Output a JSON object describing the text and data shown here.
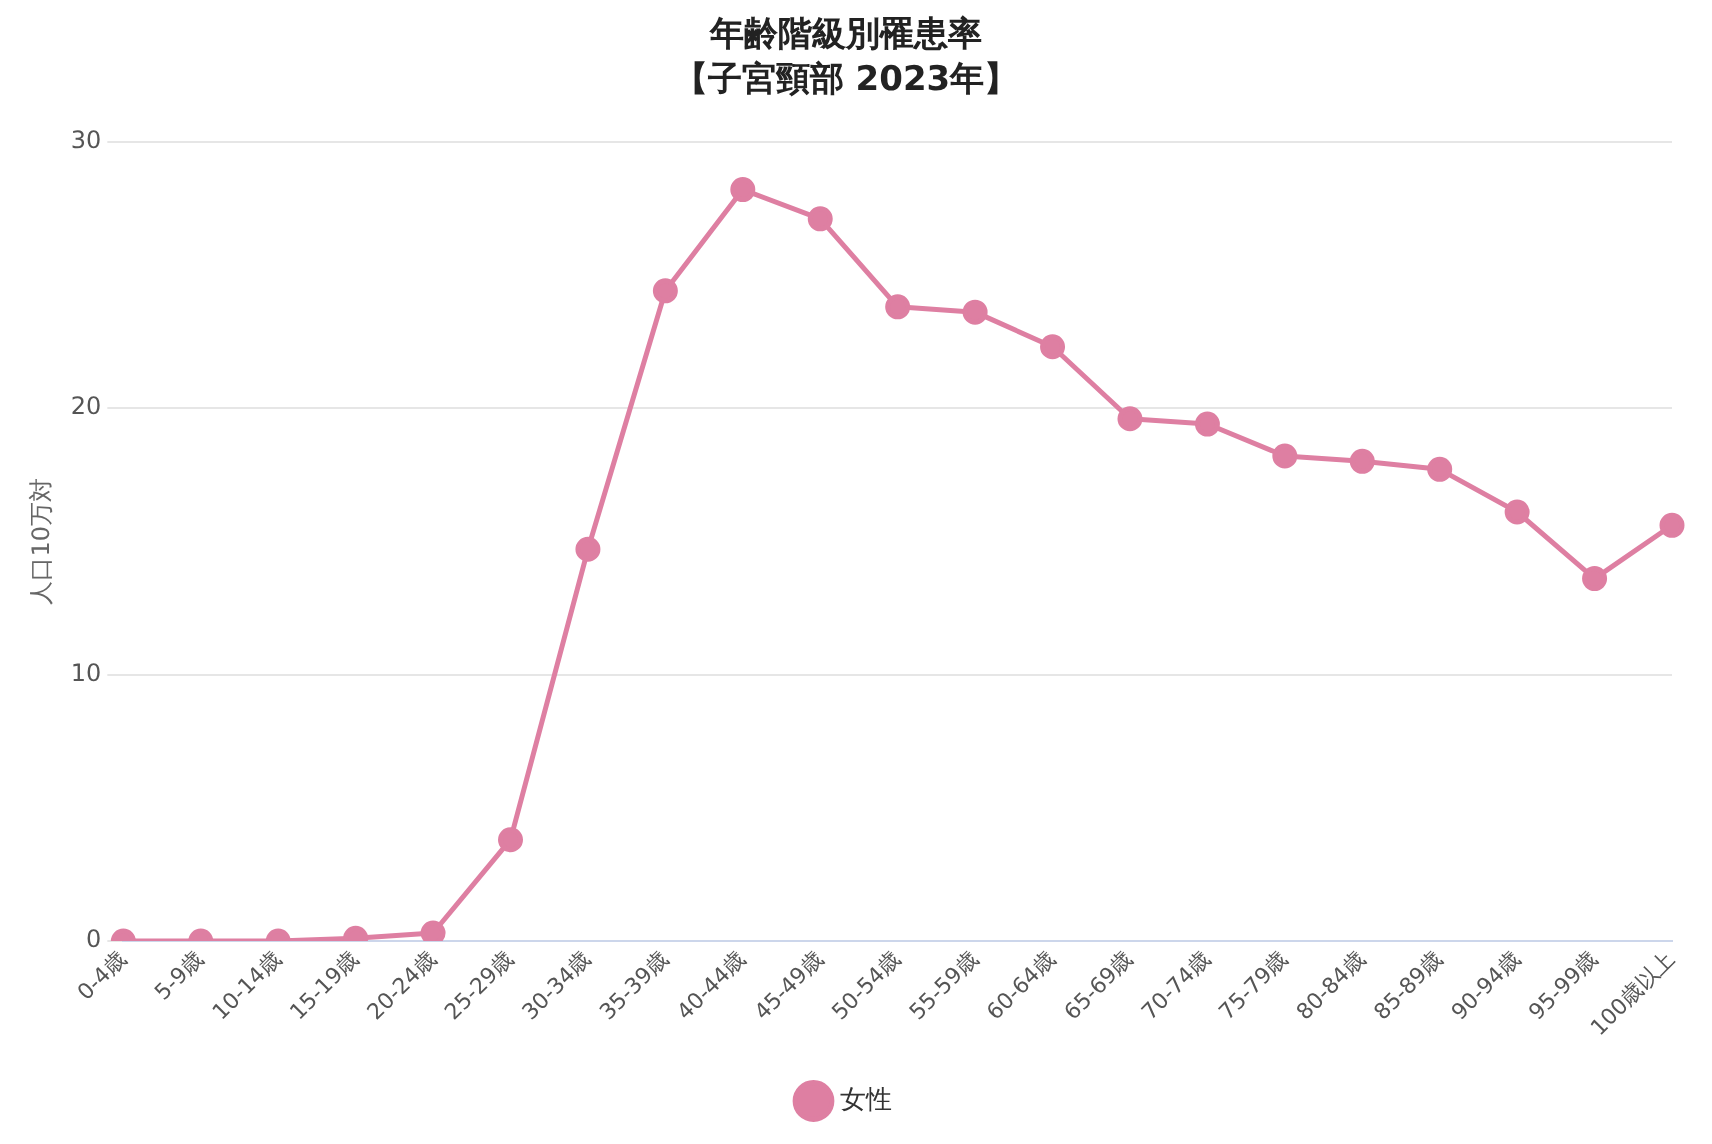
{
  "chart_data": {
    "type": "line",
    "title": "年齢階級別罹患率",
    "subtitle": "【子宮頸部 2023年】",
    "ylabel": "人口10万対",
    "categories": [
      "0-4歳",
      "5-9歳",
      "10-14歳",
      "15-19歳",
      "20-24歳",
      "25-29歳",
      "30-34歳",
      "35-39歳",
      "40-44歳",
      "45-49歳",
      "50-54歳",
      "55-59歳",
      "60-64歳",
      "65-69歳",
      "70-74歳",
      "75-79歳",
      "80-84歳",
      "85-89歳",
      "90-94歳",
      "95-99歳",
      "100歳以上"
    ],
    "series": [
      {
        "name": "女性",
        "color": "#de7fa2",
        "values": [
          0,
          0,
          0,
          0.1,
          0.3,
          3.8,
          14.7,
          24.4,
          28.2,
          27.1,
          23.8,
          23.6,
          22.3,
          19.6,
          19.4,
          18.2,
          18.0,
          17.7,
          16.1,
          13.6,
          15.6
        ]
      }
    ],
    "ylim": [
      0,
      30
    ],
    "yticks": [
      0,
      10,
      20,
      30
    ],
    "grid": "y",
    "legend": "bottom",
    "marker": "circle",
    "line_style": "solid"
  }
}
